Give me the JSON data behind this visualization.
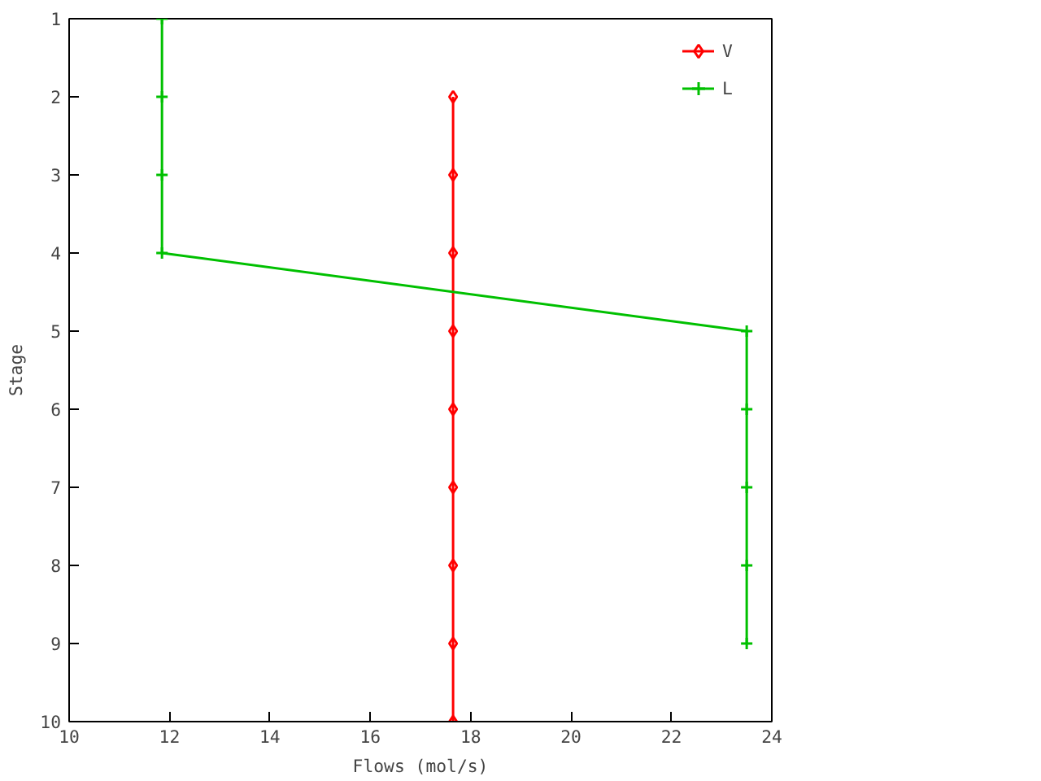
{
  "chart_data": {
    "type": "line",
    "xlabel": "Flows (mol/s)",
    "ylabel": "Stage",
    "xlim": [
      10,
      24
    ],
    "xticks": [
      10,
      12,
      14,
      16,
      18,
      20,
      22,
      24
    ],
    "ylim": [
      10,
      1
    ],
    "yticks": [
      1,
      2,
      3,
      4,
      5,
      6,
      7,
      8,
      9,
      10
    ],
    "grid": false,
    "legend": "top right",
    "line_style": "solid",
    "series": [
      {
        "name": "V",
        "color": "#ff0000",
        "marker": "diamond",
        "x": [
          17.65,
          17.65,
          17.65,
          17.65,
          17.65,
          17.65,
          17.65,
          17.65,
          17.65
        ],
        "values": [
          2,
          3,
          4,
          5,
          6,
          7,
          8,
          9,
          10
        ]
      },
      {
        "name": "L",
        "color": "#00c000",
        "marker": "cross",
        "x": [
          11.85,
          11.85,
          11.85,
          11.85,
          23.5,
          23.5,
          23.5,
          23.5,
          23.5
        ],
        "values": [
          1,
          2,
          3,
          4,
          5,
          6,
          7,
          8,
          9
        ]
      }
    ]
  }
}
